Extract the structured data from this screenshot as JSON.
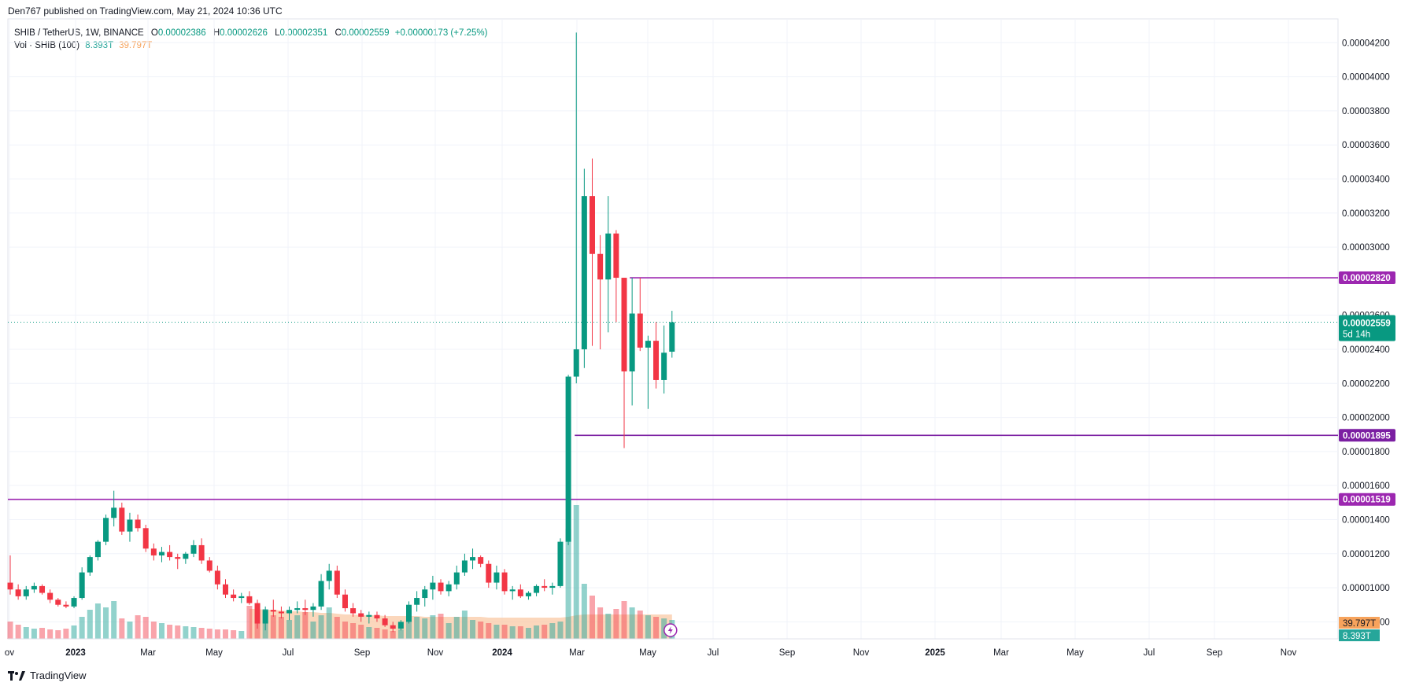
{
  "header": {
    "published": "Den767 published on TradingView.com, May 21, 2024 10:36 UTC"
  },
  "legend": {
    "symbol": "SHIB / TetherUS, 1W, BINANCE",
    "o_label": "O",
    "o_value": "0.00002386",
    "h_label": "H",
    "h_value": "0.00002626",
    "l_label": "L",
    "l_value": "0.00002351",
    "c_label": "C",
    "c_value": "0.00002559",
    "change": "+0.00000173 (+7.25%)",
    "vol_label": "Vol · SHIB (100)",
    "vol_value": "8.393T",
    "vol_ma": "39.797T"
  },
  "footer": {
    "brand": "TradingView"
  },
  "colors": {
    "up": "#089981",
    "down": "#f23645",
    "level": "#9c27b0",
    "level2": "#7b1fa2",
    "current": "#089981",
    "vol_ma_fill": "#f9c9a6"
  },
  "chart_data": {
    "type": "candlestick",
    "title": "SHIB / TetherUS, 1W, BINANCE",
    "x_tick_labels": [
      "ov",
      "2023",
      "Mar",
      "May",
      "Jul",
      "Sep",
      "Nov",
      "2024",
      "Mar",
      "May",
      "Jul",
      "Sep",
      "Nov",
      "2025",
      "Mar",
      "May",
      "Jul",
      "Sep",
      "Nov"
    ],
    "y_tick_labels": [
      "0.00004200",
      "0.00004000",
      "0.00003800",
      "0.00003600",
      "0.00003400",
      "0.00003200",
      "0.00003000",
      "0.00002600",
      "0.00002400",
      "0.00002200",
      "0.00002000",
      "0.00001800",
      "0.00001600",
      "0.00001400",
      "0.00001200",
      "0.00001000",
      "0.00000800"
    ],
    "y_tick_values": [
      4.2e-05,
      4e-05,
      3.8e-05,
      3.6e-05,
      3.4e-05,
      3.2e-05,
      3e-05,
      2.6e-05,
      2.4e-05,
      2.2e-05,
      2e-05,
      1.8e-05,
      1.6e-05,
      1.4e-05,
      1.2e-05,
      1e-05,
      8e-06
    ],
    "ylim": [
      7e-06,
      4.34e-05
    ],
    "levels": [
      {
        "label": "0.00002820",
        "value": 2.82e-05
      },
      {
        "label": "0.00001895",
        "value": 1.895e-05
      },
      {
        "label": "0.00001519",
        "value": 1.519e-05
      }
    ],
    "current_price": {
      "label": "0.00002559",
      "value": 2.559e-05,
      "countdown": "5d 14h"
    },
    "volume_badges": {
      "ma": "39.797T",
      "vol": "8.393T"
    },
    "candles": [
      [
        10.3,
        11.9,
        9.6,
        9.9
      ],
      [
        9.9,
        10.2,
        9.3,
        9.5
      ],
      [
        9.5,
        10.1,
        9.3,
        9.9
      ],
      [
        9.9,
        10.3,
        9.7,
        10.1
      ],
      [
        10.1,
        10.2,
        9.6,
        9.7
      ],
      [
        9.7,
        9.9,
        9.1,
        9.3
      ],
      [
        9.3,
        9.4,
        8.9,
        9.0
      ],
      [
        9.0,
        9.2,
        8.8,
        8.9
      ],
      [
        8.9,
        9.5,
        8.8,
        9.4
      ],
      [
        9.4,
        11.2,
        9.3,
        10.9
      ],
      [
        10.9,
        11.9,
        10.7,
        11.8
      ],
      [
        11.8,
        12.8,
        11.6,
        12.7
      ],
      [
        12.7,
        14.3,
        12.5,
        14.1
      ],
      [
        14.1,
        15.7,
        13.6,
        14.7
      ],
      [
        14.7,
        15.0,
        13.1,
        13.3
      ],
      [
        13.3,
        14.4,
        12.7,
        14.0
      ],
      [
        14.0,
        14.3,
        13.3,
        13.5
      ],
      [
        13.5,
        13.7,
        12.1,
        12.3
      ],
      [
        12.3,
        12.6,
        11.6,
        11.9
      ],
      [
        11.9,
        12.4,
        11.5,
        12.1
      ],
      [
        12.1,
        12.5,
        11.6,
        11.8
      ],
      [
        11.8,
        12.0,
        11.1,
        11.7
      ],
      [
        11.7,
        12.1,
        11.4,
        12.0
      ],
      [
        12.0,
        12.8,
        11.8,
        12.5
      ],
      [
        12.5,
        12.9,
        11.4,
        11.6
      ],
      [
        11.6,
        11.8,
        10.9,
        11.0
      ],
      [
        11.0,
        11.3,
        9.9,
        10.2
      ],
      [
        10.2,
        10.5,
        9.4,
        9.6
      ],
      [
        9.6,
        9.9,
        9.2,
        9.4
      ],
      [
        9.4,
        9.7,
        9.1,
        9.5
      ],
      [
        9.5,
        9.8,
        9.0,
        9.1
      ],
      [
        9.1,
        9.3,
        7.6,
        7.9
      ],
      [
        7.9,
        8.9,
        7.5,
        8.7
      ],
      [
        8.7,
        9.3,
        8.3,
        8.6
      ],
      [
        8.6,
        8.9,
        8.2,
        8.5
      ],
      [
        8.5,
        8.9,
        8.1,
        8.7
      ],
      [
        8.7,
        9.2,
        8.5,
        8.8
      ],
      [
        8.8,
        9.3,
        8.4,
        8.7
      ],
      [
        8.7,
        9.1,
        8.3,
        8.9
      ],
      [
        8.9,
        10.8,
        8.7,
        10.4
      ],
      [
        10.4,
        11.4,
        9.9,
        11.0
      ],
      [
        11.0,
        11.3,
        9.4,
        9.6
      ],
      [
        9.6,
        9.9,
        8.6,
        8.8
      ],
      [
        8.8,
        9.1,
        8.3,
        8.5
      ],
      [
        8.5,
        8.7,
        8.0,
        8.3
      ],
      [
        8.3,
        8.6,
        7.9,
        8.4
      ],
      [
        8.4,
        8.6,
        8.0,
        8.2
      ],
      [
        8.2,
        8.4,
        7.7,
        7.8
      ],
      [
        7.8,
        8.0,
        7.4,
        7.6
      ],
      [
        7.6,
        8.1,
        7.5,
        8.0
      ],
      [
        8.0,
        9.2,
        7.9,
        9.0
      ],
      [
        9.0,
        9.8,
        8.6,
        9.4
      ],
      [
        9.4,
        10.1,
        8.9,
        9.9
      ],
      [
        9.9,
        10.7,
        9.3,
        10.3
      ],
      [
        10.3,
        10.5,
        9.6,
        9.8
      ],
      [
        9.8,
        10.4,
        9.5,
        10.2
      ],
      [
        10.2,
        11.3,
        9.9,
        10.9
      ],
      [
        10.9,
        12.0,
        10.7,
        11.6
      ],
      [
        11.6,
        12.3,
        11.1,
        11.8
      ],
      [
        11.8,
        11.9,
        11.2,
        11.4
      ],
      [
        11.4,
        11.6,
        10.0,
        10.3
      ],
      [
        10.3,
        11.3,
        9.9,
        10.9
      ],
      [
        10.9,
        11.1,
        9.6,
        9.8
      ],
      [
        9.8,
        10.1,
        9.3,
        9.9
      ],
      [
        9.9,
        10.2,
        9.4,
        9.5
      ],
      [
        9.5,
        9.8,
        9.3,
        9.7
      ],
      [
        9.7,
        10.2,
        9.5,
        10.1
      ],
      [
        10.1,
        10.5,
        9.8,
        10.0
      ],
      [
        10.0,
        10.3,
        9.6,
        10.1
      ],
      [
        10.1,
        12.9,
        10.0,
        12.7
      ],
      [
        12.7,
        22.5,
        12.5,
        22.4
      ],
      [
        22.4,
        42.6,
        22.0,
        24.0
      ],
      [
        24.0,
        34.6,
        22.9,
        33.0
      ],
      [
        33.0,
        35.2,
        24.2,
        29.6
      ],
      [
        29.6,
        30.7,
        24.0,
        28.1
      ],
      [
        28.1,
        33.0,
        25.0,
        30.8
      ],
      [
        30.8,
        31.0,
        25.6,
        28.2
      ],
      [
        28.2,
        28.2,
        18.2,
        22.7
      ],
      [
        22.7,
        28.2,
        20.7,
        26.1
      ],
      [
        26.1,
        28.2,
        23.9,
        24.1
      ],
      [
        24.1,
        24.8,
        20.5,
        24.5
      ],
      [
        24.5,
        25.6,
        21.7,
        22.2
      ],
      [
        22.2,
        25.4,
        21.4,
        23.8
      ],
      [
        23.86,
        26.26,
        23.51,
        25.59
      ]
    ],
    "volume": [
      22,
      18,
      15,
      13,
      14,
      12,
      11,
      13,
      17,
      28,
      37,
      45,
      40,
      48,
      26,
      22,
      30,
      28,
      22,
      20,
      18,
      17,
      16,
      15,
      14,
      13,
      12,
      12,
      11,
      10,
      42,
      40,
      38,
      30,
      28,
      24,
      30,
      34,
      22,
      30,
      40,
      28,
      22,
      20,
      18,
      15,
      14,
      12,
      10,
      12,
      24,
      28,
      26,
      30,
      32,
      20,
      28,
      36,
      24,
      22,
      20,
      18,
      18,
      16,
      16,
      14,
      17,
      18,
      20,
      22,
      140,
      170,
      70,
      55,
      40,
      32,
      38,
      48,
      40,
      36,
      30,
      28,
      26,
      24
    ],
    "volume_ma": [
      0,
      0,
      0,
      0,
      0,
      0,
      0,
      0,
      0,
      0,
      0,
      0,
      0,
      0,
      0,
      0,
      0,
      0,
      0,
      0,
      0,
      0,
      0,
      0,
      0,
      0,
      0,
      0,
      0,
      0,
      38,
      38,
      37,
      37,
      36,
      35,
      35,
      34,
      34,
      33,
      33,
      32,
      31,
      31,
      30,
      30,
      30,
      29,
      29,
      29,
      29,
      29,
      28,
      28,
      28,
      28,
      28,
      28,
      28,
      28,
      27,
      27,
      27,
      27,
      27,
      27,
      27,
      27,
      27,
      27,
      28,
      30,
      31,
      31,
      31,
      31,
      31,
      31,
      31,
      31,
      31,
      31,
      31,
      31
    ],
    "volume_max": 200
  }
}
